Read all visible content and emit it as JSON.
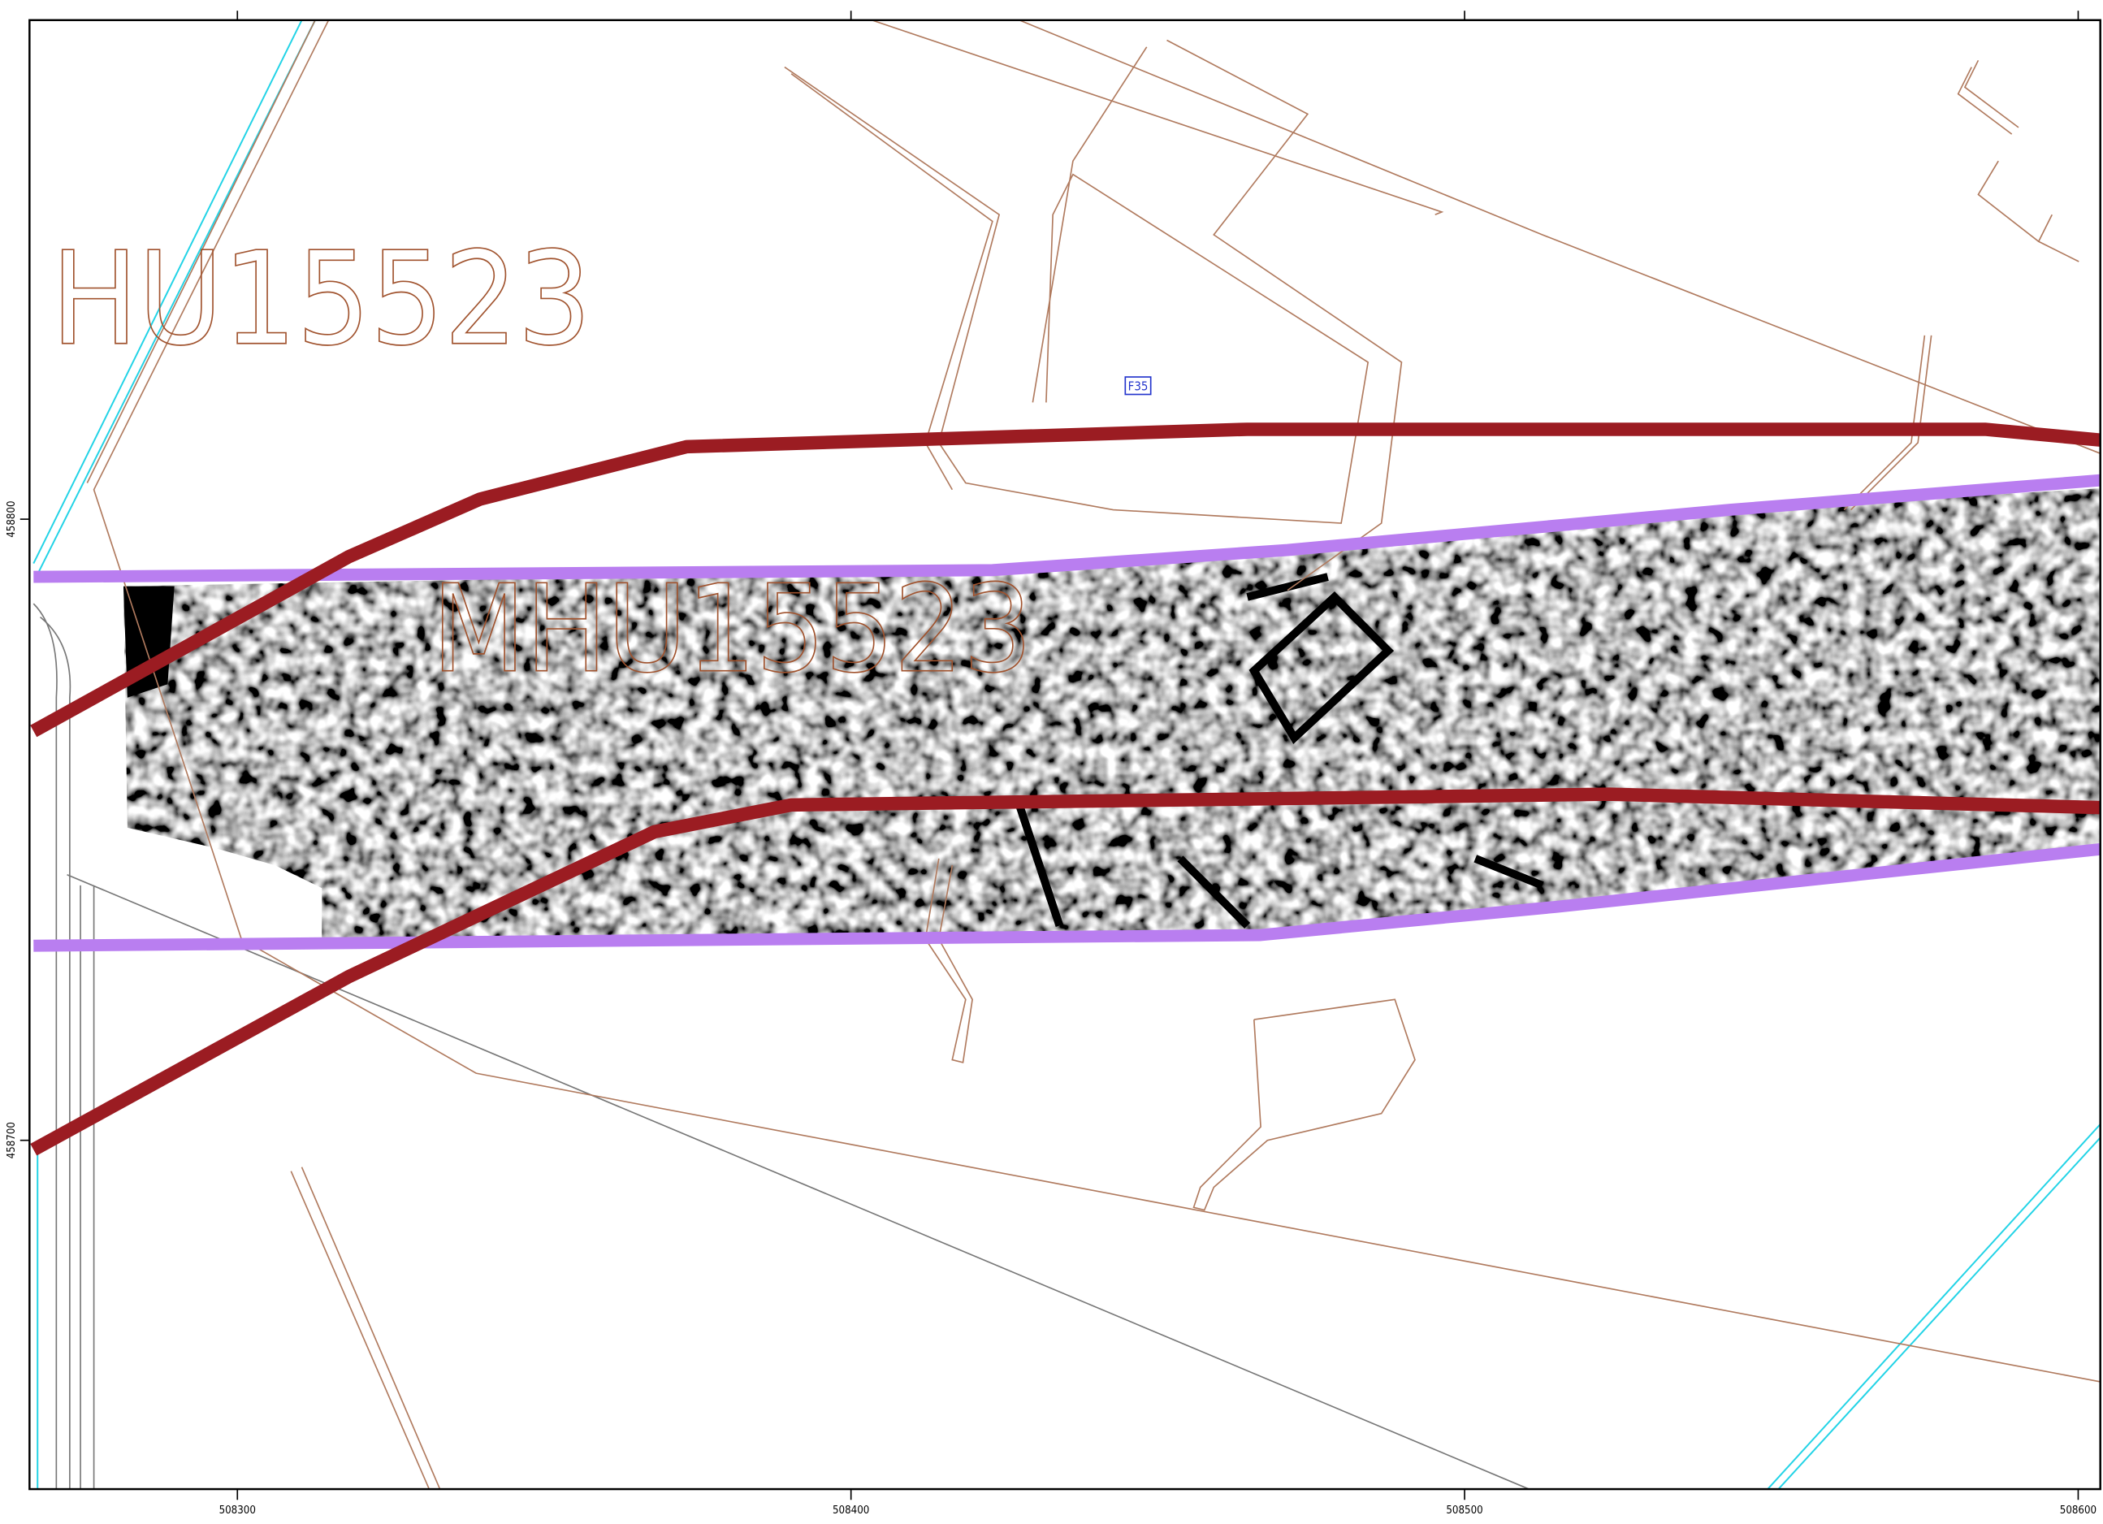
{
  "labels": {
    "parcel": "HU15523",
    "monument": "MHU15523",
    "field": "F35"
  },
  "grid": {
    "eastings": [
      508300,
      508400,
      508500,
      508600
    ],
    "northings": [
      458800,
      458700
    ]
  }
}
